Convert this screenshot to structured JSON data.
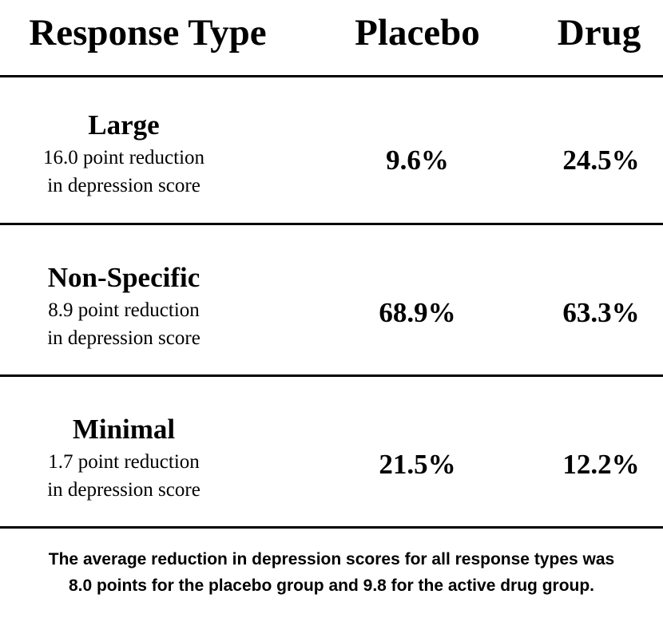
{
  "chart_data": {
    "type": "table",
    "columns": [
      "Response Type",
      "Placebo",
      "Drug"
    ],
    "rows": [
      {
        "name": "Large",
        "desc_line1": "16.0 point reduction",
        "desc_line2": "in depression score",
        "placebo": "9.6%",
        "drug": "24.5%"
      },
      {
        "name": "Non-Specific",
        "desc_line1": "8.9 point reduction",
        "desc_line2": "in depression score",
        "placebo": "68.9%",
        "drug": "63.3%"
      },
      {
        "name": "Minimal",
        "desc_line1": "1.7 point reduction",
        "desc_line2": "in depression score",
        "placebo": "21.5%",
        "drug": "12.2%"
      }
    ],
    "footnote_line1": "The average reduction in depression scores for all response types was",
    "footnote_line2": "8.0 points for the placebo group and 9.8 for the active drug group."
  }
}
